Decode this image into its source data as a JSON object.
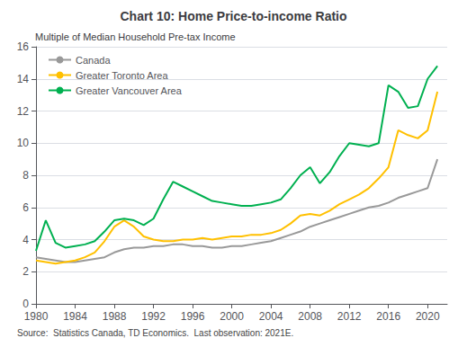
{
  "chart_data": {
    "type": "line",
    "title": "Chart 10: Home Price-to-income Ratio",
    "ylabel": "Multiple of Median Household Pre-tax Income",
    "source": "Source:  Statistics Canada, TD Economics.  Last observation: 2021E.",
    "x": [
      1980,
      1981,
      1982,
      1983,
      1984,
      1985,
      1986,
      1987,
      1988,
      1989,
      1990,
      1991,
      1992,
      1993,
      1994,
      1995,
      1996,
      1997,
      1998,
      1999,
      2000,
      2001,
      2002,
      2003,
      2004,
      2005,
      2006,
      2007,
      2008,
      2009,
      2010,
      2011,
      2012,
      2013,
      2014,
      2015,
      2016,
      2017,
      2018,
      2019,
      2020,
      2021
    ],
    "series": [
      {
        "name": "Canada",
        "color": "#999999",
        "values": [
          2.9,
          2.8,
          2.7,
          2.6,
          2.6,
          2.7,
          2.8,
          2.9,
          3.2,
          3.4,
          3.5,
          3.5,
          3.6,
          3.6,
          3.7,
          3.7,
          3.6,
          3.6,
          3.5,
          3.5,
          3.6,
          3.6,
          3.7,
          3.8,
          3.9,
          4.1,
          4.3,
          4.5,
          4.8,
          5.0,
          5.2,
          5.4,
          5.6,
          5.8,
          6.0,
          6.1,
          6.3,
          6.6,
          6.8,
          7.0,
          7.2,
          9.0
        ]
      },
      {
        "name": "Greater Toronto Area",
        "color": "#FFC000",
        "values": [
          2.7,
          2.6,
          2.5,
          2.6,
          2.7,
          2.9,
          3.2,
          3.9,
          4.8,
          5.2,
          4.8,
          4.2,
          4.0,
          3.9,
          3.9,
          4.0,
          4.0,
          4.1,
          4.0,
          4.1,
          4.2,
          4.2,
          4.3,
          4.3,
          4.4,
          4.6,
          5.0,
          5.5,
          5.6,
          5.5,
          5.8,
          6.2,
          6.5,
          6.8,
          7.2,
          7.8,
          8.5,
          10.8,
          10.5,
          10.3,
          10.8,
          13.2
        ]
      },
      {
        "name": "Greater Vancouver Area",
        "color": "#00B050",
        "values": [
          3.3,
          5.2,
          3.8,
          3.5,
          3.6,
          3.7,
          3.9,
          4.5,
          5.2,
          5.3,
          5.2,
          4.9,
          5.3,
          6.5,
          7.6,
          7.3,
          7.0,
          6.7,
          6.4,
          6.3,
          6.2,
          6.1,
          6.1,
          6.2,
          6.3,
          6.5,
          7.2,
          8.0,
          8.5,
          7.5,
          8.2,
          9.2,
          10.0,
          9.9,
          9.8,
          10.0,
          13.6,
          13.2,
          12.2,
          12.3,
          14.0,
          14.8
        ]
      }
    ],
    "xlim": [
      1980,
      2022
    ],
    "xticks": [
      1980,
      1984,
      1988,
      1992,
      1996,
      2000,
      2004,
      2008,
      2012,
      2016,
      2020
    ],
    "ylim": [
      0,
      16
    ],
    "yticks": [
      0,
      2,
      4,
      6,
      8,
      10,
      12,
      14,
      16
    ],
    "grid": true,
    "legend": "upper left"
  }
}
